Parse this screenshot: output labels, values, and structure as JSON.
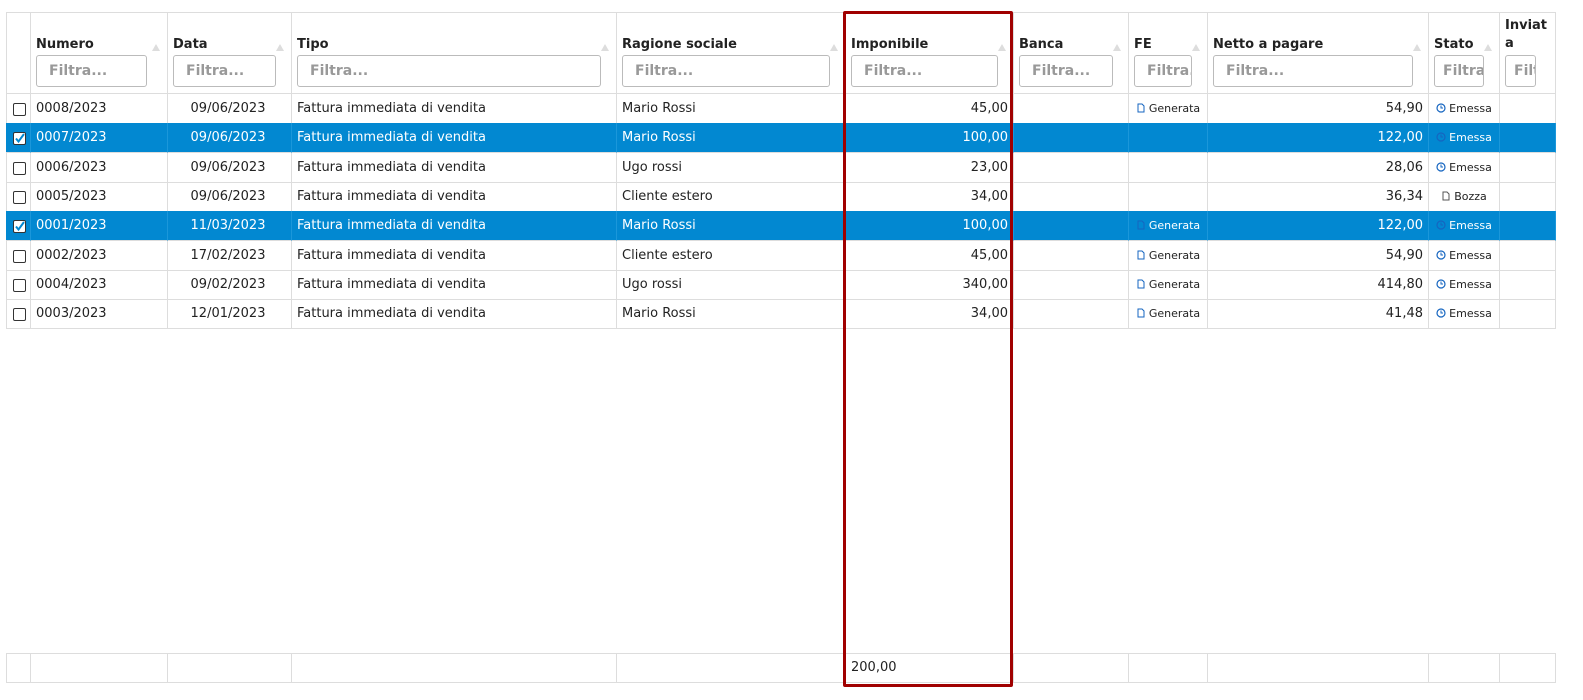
{
  "table": {
    "columns": [
      "Numero",
      "Data",
      "Tipo",
      "Ragione sociale",
      "Imponibile",
      "Banca",
      "FE",
      "Netto a pagare",
      "Stato",
      "Inviata"
    ],
    "filter_placeholder": "Filtra...",
    "rows": [
      {
        "selected": false,
        "cells": [
          "0008/2023",
          "09/06/2023",
          "Fattura immediata di vendita",
          "Mario Rossi",
          "45,00",
          null,
          "Generata",
          "54,90",
          "Emessa",
          null
        ]
      },
      {
        "selected": true,
        "cells": [
          "0007/2023",
          "09/06/2023",
          "Fattura immediata di vendita",
          "Mario Rossi",
          "100,00",
          null,
          null,
          "122,00",
          "Emessa",
          null
        ]
      },
      {
        "selected": false,
        "cells": [
          "0006/2023",
          "09/06/2023",
          "Fattura immediata di vendita",
          "Ugo rossi",
          "23,00",
          null,
          null,
          "28,06",
          "Emessa",
          null
        ]
      },
      {
        "selected": false,
        "cells": [
          "0005/2023",
          "09/06/2023",
          "Fattura immediata di vendita",
          "Cliente estero",
          "34,00",
          null,
          null,
          "36,34",
          "Bozza",
          null
        ]
      },
      {
        "selected": true,
        "cells": [
          "0001/2023",
          "11/03/2023",
          "Fattura immediata di vendita",
          "Mario Rossi",
          "100,00",
          null,
          "Generata",
          "122,00",
          "Emessa",
          null
        ]
      },
      {
        "selected": false,
        "cells": [
          "0002/2023",
          "17/02/2023",
          "Fattura immediata di vendita",
          "Cliente estero",
          "45,00",
          null,
          "Generata",
          "54,90",
          "Emessa",
          null
        ]
      },
      {
        "selected": false,
        "cells": [
          "0004/2023",
          "09/02/2023",
          "Fattura immediata di vendita",
          "Ugo rossi",
          "340,00",
          null,
          "Generata",
          "414,80",
          "Emessa",
          null
        ]
      },
      {
        "selected": false,
        "cells": [
          "0003/2023",
          "12/01/2023",
          "Fattura immediata di vendita",
          "Mario Rossi",
          "34,00",
          null,
          "Generata",
          "41,48",
          "Emessa",
          null
        ]
      }
    ],
    "footer": {
      "imponibile_total": "200,00"
    }
  }
}
